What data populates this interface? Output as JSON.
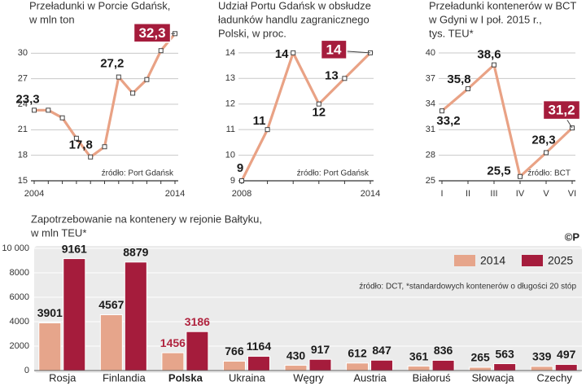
{
  "chart_data": [
    {
      "type": "line",
      "title": [
        "Przeładunki w Porcie Gdańsk,",
        "w mln ton"
      ],
      "categories": [
        "2004",
        null,
        null,
        null,
        null,
        null,
        null,
        null,
        null,
        null,
        "2014"
      ],
      "values": [
        23.3,
        23.3,
        22.4,
        20,
        17.8,
        19,
        27.2,
        25.3,
        26.9,
        30.3,
        32.3
      ],
      "value_labels": [
        "23,3",
        null,
        null,
        null,
        "17,8",
        null,
        "27,2",
        null,
        null,
        null,
        "32,3"
      ],
      "ylim": [
        15,
        33
      ],
      "yticks": [
        15,
        18,
        21,
        24,
        27,
        30
      ],
      "grid": true,
      "color": "#e9a285",
      "source": "źródło: Port Gdańsk"
    },
    {
      "type": "line",
      "title": [
        "Udział Portu Gdańsk w obsłudze",
        "ładunków handlu zagranicznego",
        "Polski, w proc."
      ],
      "categories": [
        "2008",
        null,
        null,
        null,
        null,
        "2014"
      ],
      "values": [
        9,
        11,
        14,
        12,
        13,
        14
      ],
      "value_labels": [
        "9",
        "11",
        "14",
        "12",
        "13",
        "14"
      ],
      "ylim": [
        9,
        14.6
      ],
      "yticks": [
        9,
        10,
        11,
        12,
        13,
        14
      ],
      "grid": true,
      "color": "#e9a285",
      "source": "źródło: Port Gdańsk"
    },
    {
      "type": "line",
      "title": [
        "Przeładunki kontenerów w BCT",
        "w Gdyni w I poł. 2015 r.,",
        "tys. TEU*"
      ],
      "categories": [
        "I",
        "II",
        "III",
        "IV",
        "V",
        "VI"
      ],
      "values": [
        33.2,
        35.8,
        38.6,
        25.5,
        28.3,
        31.2
      ],
      "value_labels": [
        "33,2",
        "35,8",
        "38,6",
        "25,5",
        "28,3",
        "31,2"
      ],
      "ylim": [
        25,
        40
      ],
      "yticks": [
        25,
        28,
        31,
        34,
        37,
        40
      ],
      "grid": true,
      "color": "#e9a285",
      "source": "źródło: BCT"
    },
    {
      "type": "bar",
      "title": [
        "Zapotrzebowanie na kontenery w rejonie Bałtyku,",
        "w mln TEU*"
      ],
      "categories": [
        "Rosja",
        "Finlandia",
        "Polska",
        "Ukraina",
        "Węgry",
        "Austria",
        "Białoruś",
        "Słowacja",
        "Czechy"
      ],
      "series": [
        {
          "name": "2014",
          "color": "#e6a58b",
          "values": [
            3901,
            4567,
            1456,
            766,
            430,
            612,
            361,
            265,
            339
          ]
        },
        {
          "name": "2025",
          "color": "#a51c3c",
          "values": [
            9161,
            8879,
            3186,
            1164,
            917,
            847,
            836,
            563,
            497
          ]
        }
      ],
      "ylim": [
        0,
        10000
      ],
      "yticks": [
        0,
        2000,
        4000,
        6000,
        8000,
        {
          "value": 10000,
          "label": "10 000"
        }
      ],
      "grid": true,
      "legend": "top-right",
      "highlight_index": 2,
      "highlight_color": "#b0243f",
      "note": "źródło: DCT, *standardowych kontenerów o długości 20 stóp",
      "logo": "©P"
    }
  ]
}
